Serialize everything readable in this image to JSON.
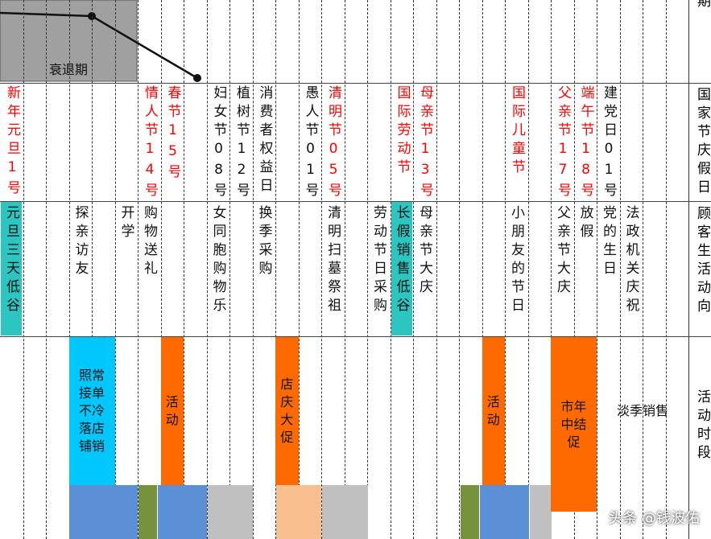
{
  "top_fragment": "期",
  "phase_label": "衰退期",
  "row_labels": [
    "国家节庆假日",
    "顾客生活动向",
    "活动时段"
  ],
  "holidays": [
    {
      "text": "新年元旦1号",
      "color": "#ff0000"
    },
    {
      "text": "情人节14号",
      "color": "#ff0000"
    },
    {
      "text": "春节15号",
      "color": "#ff0000"
    },
    {
      "text": "妇女节08号",
      "color": "#111111"
    },
    {
      "text": "植树节12号",
      "color": "#111111"
    },
    {
      "text": "消费者权益日",
      "color": "#111111"
    },
    {
      "text": "愚人节01号",
      "color": "#111111"
    },
    {
      "text": "清明节05号",
      "color": "#ff0000"
    },
    {
      "text": "国际劳动节",
      "color": "#ff0000"
    },
    {
      "text": "母亲节13号",
      "color": "#ff0000"
    },
    {
      "text": "国际儿童节",
      "color": "#ff0000"
    },
    {
      "text": "父亲节17号",
      "color": "#ff0000"
    },
    {
      "text": "端午节18号",
      "color": "#ff0000"
    },
    {
      "text": "建党日01号",
      "color": "#111111"
    }
  ],
  "activities": [
    {
      "text": "元旦三天低谷",
      "background": "#2cc5c0"
    },
    {
      "text": "探亲访友"
    },
    {
      "text": "开学"
    },
    {
      "text": "购物送礼"
    },
    {
      "text": "女同胞购物乐"
    },
    {
      "text": "换季采购"
    },
    {
      "text": "清明扫墓祭祖"
    },
    {
      "text": "劳动节日采购"
    },
    {
      "text": "长假销售低谷",
      "background": "#2cc5c0"
    },
    {
      "text": "母亲节大庆"
    },
    {
      "text": "小朋友的节日"
    },
    {
      "text": "父亲节大庆"
    },
    {
      "text": "放假"
    },
    {
      "text": "党的生日"
    },
    {
      "text": "法政机关庆祝"
    }
  ],
  "promotions": [
    {
      "text": "照常接单不冷落店铺销",
      "background": "#00c8ff"
    },
    {
      "text": "活动",
      "background": "#ff6a00"
    },
    {
      "text": "店庆大促",
      "background": "#ff6a00"
    },
    {
      "text": "活动",
      "background": "#ff6a00"
    },
    {
      "text": "市年中结促",
      "background": "#ff6a00"
    },
    {
      "text": "淡季销售"
    }
  ],
  "watermark": "头条 @钱波佑"
}
